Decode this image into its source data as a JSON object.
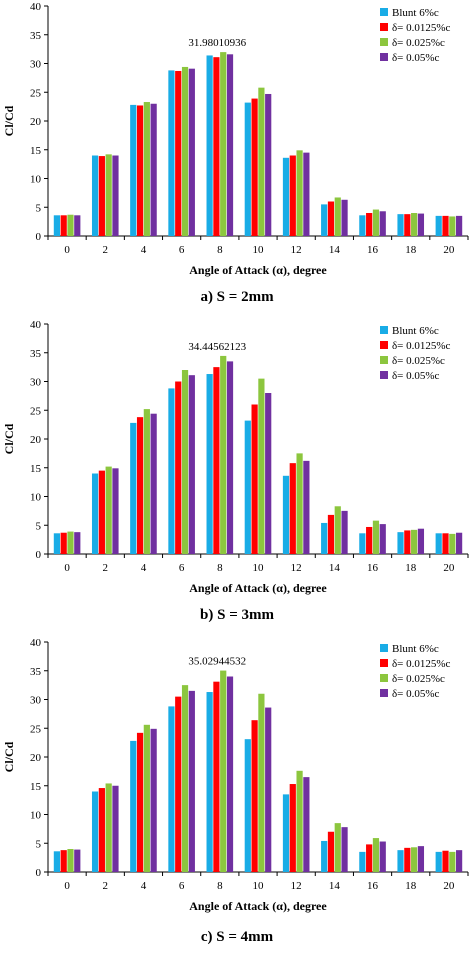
{
  "colors": {
    "Blunt 6%c": "#19ACE6",
    "δ= 0.0125%c": "#FF0000",
    "δ= 0.025%c": "#8CC63E",
    "δ= 0.05%c": "#7030A0"
  },
  "chart_data": [
    {
      "type": "bar",
      "caption": "a) S = 2mm",
      "xlabel": "Angle of Attack (α), degree",
      "ylabel": "Cl/Cd",
      "ylim": [
        0,
        40
      ],
      "yticks": [
        0,
        5,
        10,
        15,
        20,
        25,
        30,
        35,
        40
      ],
      "categories": [
        "0",
        "2",
        "4",
        "6",
        "8",
        "10",
        "12",
        "14",
        "16",
        "18",
        "20"
      ],
      "annotation": "31.98010936",
      "legend_position": "top-right",
      "grid": false,
      "series": [
        {
          "name": "Blunt 6%c",
          "values": [
            3.6,
            14.0,
            22.8,
            28.8,
            31.4,
            23.2,
            13.6,
            5.5,
            3.6,
            3.8,
            3.5
          ]
        },
        {
          "name": "δ= 0.0125%c",
          "values": [
            3.6,
            13.9,
            22.7,
            28.7,
            31.1,
            23.9,
            14.0,
            6.0,
            4.0,
            3.8,
            3.5
          ]
        },
        {
          "name": "δ= 0.025%c",
          "values": [
            3.7,
            14.2,
            23.3,
            29.4,
            31.98,
            25.8,
            14.9,
            6.7,
            4.6,
            4.0,
            3.4
          ]
        },
        {
          "name": "δ= 0.05%c",
          "values": [
            3.6,
            14.0,
            23.0,
            29.1,
            31.6,
            24.7,
            14.5,
            6.3,
            4.3,
            3.9,
            3.5
          ]
        }
      ]
    },
    {
      "type": "bar",
      "caption": "b) S = 3mm",
      "xlabel": "Angle of Attack (α), degree",
      "ylabel": "Cl/Cd",
      "ylim": [
        0,
        40
      ],
      "yticks": [
        0,
        5,
        10,
        15,
        20,
        25,
        30,
        35,
        40
      ],
      "categories": [
        "0",
        "2",
        "4",
        "6",
        "8",
        "10",
        "12",
        "14",
        "16",
        "18",
        "20"
      ],
      "annotation": "34.44562123",
      "legend_position": "top-right",
      "grid": false,
      "series": [
        {
          "name": "Blunt 6%c",
          "values": [
            3.6,
            14.0,
            22.8,
            28.8,
            31.3,
            23.2,
            13.6,
            5.4,
            3.6,
            3.8,
            3.6
          ]
        },
        {
          "name": "δ= 0.0125%c",
          "values": [
            3.7,
            14.5,
            23.8,
            30.0,
            32.5,
            26.0,
            15.8,
            6.8,
            4.7,
            4.1,
            3.6
          ]
        },
        {
          "name": "δ= 0.025%c",
          "values": [
            3.9,
            15.2,
            25.2,
            32.0,
            34.45,
            30.5,
            17.5,
            8.3,
            5.8,
            4.2,
            3.5
          ]
        },
        {
          "name": "δ= 0.05%c",
          "values": [
            3.8,
            14.9,
            24.4,
            31.1,
            33.5,
            28.0,
            16.2,
            7.5,
            5.2,
            4.4,
            3.7
          ]
        }
      ]
    },
    {
      "type": "bar",
      "caption": "c) S = 4mm",
      "xlabel": "Angle of Attack (α), degree",
      "ylabel": "Cl/Cd",
      "ylim": [
        0,
        40
      ],
      "yticks": [
        0,
        5,
        10,
        15,
        20,
        25,
        30,
        35,
        40
      ],
      "categories": [
        "0",
        "2",
        "4",
        "6",
        "8",
        "10",
        "12",
        "14",
        "16",
        "18",
        "20"
      ],
      "annotation": "35.02944532",
      "legend_position": "top-right",
      "grid": false,
      "series": [
        {
          "name": "Blunt 6%c",
          "values": [
            3.6,
            14.0,
            22.8,
            28.8,
            31.3,
            23.1,
            13.5,
            5.4,
            3.5,
            3.8,
            3.5
          ]
        },
        {
          "name": "δ= 0.0125%c",
          "values": [
            3.8,
            14.6,
            24.2,
            30.5,
            33.1,
            26.4,
            15.3,
            7.0,
            4.8,
            4.2,
            3.7
          ]
        },
        {
          "name": "δ= 0.025%c",
          "values": [
            4.0,
            15.4,
            25.6,
            32.5,
            35.03,
            31.0,
            17.6,
            8.5,
            5.9,
            4.3,
            3.5
          ]
        },
        {
          "name": "δ= 0.05%c",
          "values": [
            3.9,
            15.0,
            24.9,
            31.5,
            34.0,
            28.6,
            16.5,
            7.8,
            5.3,
            4.5,
            3.8
          ]
        }
      ]
    }
  ]
}
